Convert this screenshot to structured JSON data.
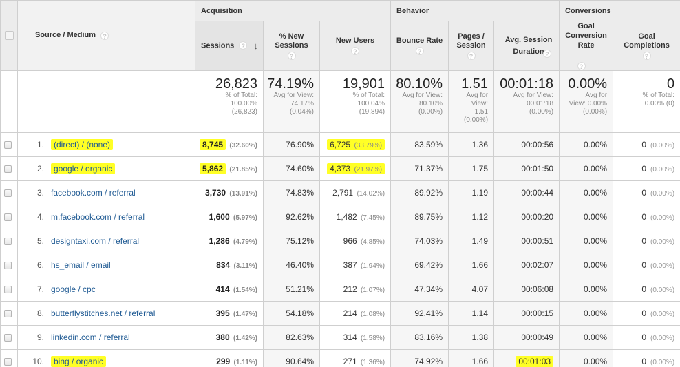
{
  "header": {
    "source_medium": "Source / Medium",
    "groups": {
      "acquisition": "Acquisition",
      "behavior": "Behavior",
      "conversions": "Conversions"
    },
    "columns": {
      "sessions": "Sessions",
      "pct_new_sessions": "% New Sessions",
      "new_users": "New Users",
      "bounce_rate": "Bounce Rate",
      "pages_session": "Pages / Session",
      "avg_session_duration": "Avg. Session Duration",
      "goal_conversion_rate": "Goal Conversion Rate",
      "goal_completions": "Goal Completions"
    },
    "help_glyph": "?",
    "sort_arrow": "↓"
  },
  "totals": {
    "sessions": {
      "value": "26,823",
      "l1": "% of Total:",
      "l2": "100.00%",
      "l3": "(26,823)"
    },
    "pct_new_sessions": {
      "value": "74.19%",
      "l1": "Avg for View:",
      "l2": "74.17%",
      "l3": "(0.04%)"
    },
    "new_users": {
      "value": "19,901",
      "l1": "% of Total:",
      "l2": "100.04%",
      "l3": "(19,894)"
    },
    "bounce_rate": {
      "value": "80.10%",
      "l1": "Avg for View:",
      "l2": "80.10%",
      "l3": "(0.00%)"
    },
    "pages_session": {
      "value": "1.51",
      "l1": "Avg for",
      "l2": "View:",
      "l3": "1.51",
      "l4": "(0.00%)"
    },
    "avg_session_duration": {
      "value": "00:01:18",
      "l1": "Avg for View:",
      "l2": "00:01:18",
      "l3": "(0.00%)"
    },
    "goal_conversion_rate": {
      "value": "0.00%",
      "l1": "Avg for",
      "l2": "View: 0.00%",
      "l3": "(0.00%)"
    },
    "goal_completions": {
      "value": "0",
      "l1": "% of Total:",
      "l2": "0.00% (0)"
    }
  },
  "rows": [
    {
      "idx": "1.",
      "source": "(direct) / (none)",
      "sessions": "8,745",
      "sessions_pct": "(32.60%)",
      "pct_new": "76.90%",
      "new_users": "6,725",
      "new_users_pct": "(33.79%)",
      "bounce": "83.59%",
      "pages": "1.36",
      "duration": "00:00:56",
      "gcr": "0.00%",
      "gc": "0",
      "gc_pct": "(0.00%)"
    },
    {
      "idx": "2.",
      "source": "google / organic",
      "sessions": "5,862",
      "sessions_pct": "(21.85%)",
      "pct_new": "74.60%",
      "new_users": "4,373",
      "new_users_pct": "(21.97%)",
      "bounce": "71.37%",
      "pages": "1.75",
      "duration": "00:01:50",
      "gcr": "0.00%",
      "gc": "0",
      "gc_pct": "(0.00%)"
    },
    {
      "idx": "3.",
      "source": "facebook.com / referral",
      "sessions": "3,730",
      "sessions_pct": "(13.91%)",
      "pct_new": "74.83%",
      "new_users": "2,791",
      "new_users_pct": "(14.02%)",
      "bounce": "89.92%",
      "pages": "1.19",
      "duration": "00:00:44",
      "gcr": "0.00%",
      "gc": "0",
      "gc_pct": "(0.00%)"
    },
    {
      "idx": "4.",
      "source": "m.facebook.com / referral",
      "sessions": "1,600",
      "sessions_pct": "(5.97%)",
      "pct_new": "92.62%",
      "new_users": "1,482",
      "new_users_pct": "(7.45%)",
      "bounce": "89.75%",
      "pages": "1.12",
      "duration": "00:00:20",
      "gcr": "0.00%",
      "gc": "0",
      "gc_pct": "(0.00%)"
    },
    {
      "idx": "5.",
      "source": "designtaxi.com / referral",
      "sessions": "1,286",
      "sessions_pct": "(4.79%)",
      "pct_new": "75.12%",
      "new_users": "966",
      "new_users_pct": "(4.85%)",
      "bounce": "74.03%",
      "pages": "1.49",
      "duration": "00:00:51",
      "gcr": "0.00%",
      "gc": "0",
      "gc_pct": "(0.00%)"
    },
    {
      "idx": "6.",
      "source": "hs_email / email",
      "sessions": "834",
      "sessions_pct": "(3.11%)",
      "pct_new": "46.40%",
      "new_users": "387",
      "new_users_pct": "(1.94%)",
      "bounce": "69.42%",
      "pages": "1.66",
      "duration": "00:02:07",
      "gcr": "0.00%",
      "gc": "0",
      "gc_pct": "(0.00%)"
    },
    {
      "idx": "7.",
      "source": "google / cpc",
      "sessions": "414",
      "sessions_pct": "(1.54%)",
      "pct_new": "51.21%",
      "new_users": "212",
      "new_users_pct": "(1.07%)",
      "bounce": "47.34%",
      "pages": "4.07",
      "duration": "00:06:08",
      "gcr": "0.00%",
      "gc": "0",
      "gc_pct": "(0.00%)"
    },
    {
      "idx": "8.",
      "source": "butterflystitches.net / referral",
      "sessions": "395",
      "sessions_pct": "(1.47%)",
      "pct_new": "54.18%",
      "new_users": "214",
      "new_users_pct": "(1.08%)",
      "bounce": "92.41%",
      "pages": "1.14",
      "duration": "00:00:15",
      "gcr": "0.00%",
      "gc": "0",
      "gc_pct": "(0.00%)"
    },
    {
      "idx": "9.",
      "source": "linkedin.com / referral",
      "sessions": "380",
      "sessions_pct": "(1.42%)",
      "pct_new": "82.63%",
      "new_users": "314",
      "new_users_pct": "(1.58%)",
      "bounce": "83.16%",
      "pages": "1.38",
      "duration": "00:00:49",
      "gcr": "0.00%",
      "gc": "0",
      "gc_pct": "(0.00%)"
    },
    {
      "idx": "10.",
      "source": "bing / organic",
      "sessions": "299",
      "sessions_pct": "(1.11%)",
      "pct_new": "90.64%",
      "new_users": "271",
      "new_users_pct": "(1.36%)",
      "bounce": "74.92%",
      "pages": "1.66",
      "duration": "00:01:03",
      "gcr": "0.00%",
      "gc": "0",
      "gc_pct": "(0.00%)"
    }
  ],
  "highlights": {
    "color": "#ffff26",
    "source": [
      0,
      1,
      9
    ],
    "sessions": [
      0,
      1
    ],
    "new_users": [
      0,
      1
    ],
    "duration": [
      9
    ]
  },
  "colors": {
    "link": "#1f5a93",
    "header_bg": "#ececec",
    "border": "#cfcfcf"
  }
}
